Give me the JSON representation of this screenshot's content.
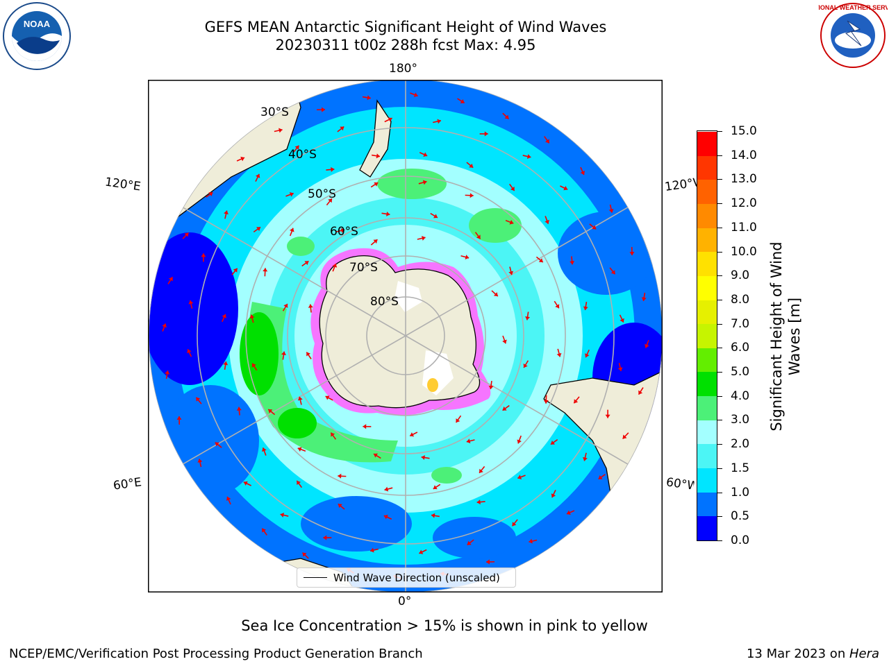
{
  "header": {
    "title_line1": "GEFS MEAN Antarctic Significant Height of Wind Waves",
    "title_line2": "20230311 t00z 288h fcst   Max: 4.95"
  },
  "logos": {
    "noaa_text": "NOAA",
    "noaa_ring_text": "NATIONAL OCEANIC AND ATMOSPHERIC ADMINISTRATION · U.S. DEPARTMENT OF COMMERCE",
    "nws_ring_text": "NATIONAL WEATHER SERVICE"
  },
  "map": {
    "lon_labels": {
      "top": "180°",
      "bottom": "0°",
      "upper_left": "120°E",
      "upper_right": "120°W",
      "lower_left": "60°E",
      "lower_right": "60°W"
    },
    "lat_labels": [
      "30°S",
      "40°S",
      "50°S",
      "60°S",
      "70°S",
      "80°S"
    ],
    "legend_label": "Wind Wave Direction (unscaled)",
    "colors": {
      "land": "#efedd9",
      "ice_pink": "#ff66ff",
      "ice_yellow": "#ffcc33",
      "arrow": "#ee0000",
      "grid": "#b0b0b0"
    }
  },
  "colorbar": {
    "title": "Significant Height of Wind Waves [m]",
    "tick_labels": [
      "0.0",
      "0.5",
      "1.0",
      "1.5",
      "2.0",
      "3.0",
      "4.0",
      "5.0",
      "6.0",
      "7.0",
      "8.0",
      "9.0",
      "10.0",
      "11.0",
      "12.0",
      "13.0",
      "14.0",
      "15.0"
    ],
    "colors": [
      "#0000ff",
      "#0073ff",
      "#00e5ff",
      "#4cf5f5",
      "#a3ffff",
      "#4cf078",
      "#00e000",
      "#63ee00",
      "#c6f400",
      "#e6f000",
      "#ffff00",
      "#ffe100",
      "#ffb200",
      "#ff8a00",
      "#ff6200",
      "#ff3600",
      "#ff0000"
    ]
  },
  "note": "Sea Ice Concentration > 15% is shown in pink to yellow",
  "footer": {
    "left": "NCEP/EMC/Verification Post Processing Product Generation Branch",
    "right_date": "13 Mar 2023 on ",
    "right_machine": "Hera"
  }
}
